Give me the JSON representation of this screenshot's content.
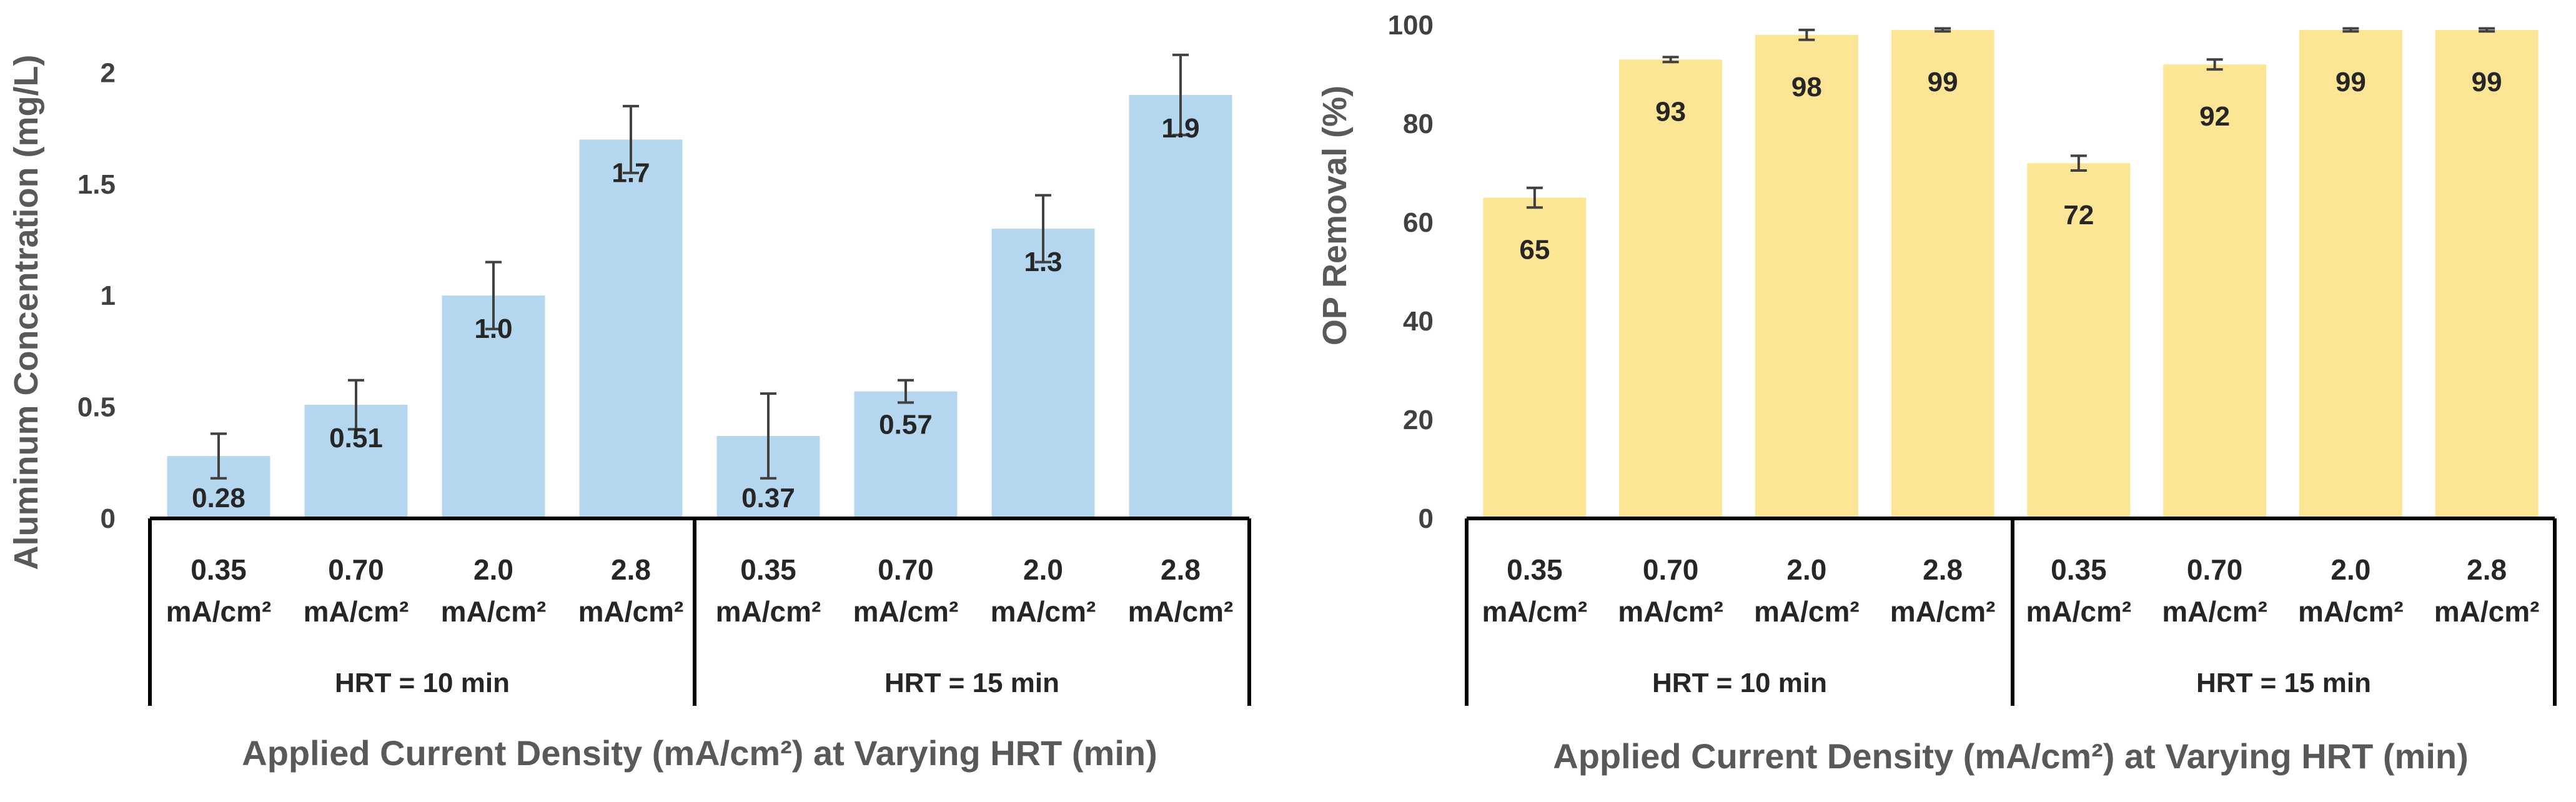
{
  "colors": {
    "left_bar": "#b4d6ee",
    "right_bar": "#fde596",
    "text": "#404040",
    "frame": "#000000",
    "error": "#404040"
  },
  "chart_data": [
    {
      "type": "bar",
      "title": "",
      "ylabel": "Aluminum Concentration (mg/L)",
      "xlabel": "Applied Current Density (mA/cm²) at Varying HRT (min)",
      "ylim": [
        0,
        2.2
      ],
      "yticks": [
        "0",
        "0.5",
        "1",
        "1.5",
        "2"
      ],
      "ytick_values": [
        0,
        0.5,
        1,
        1.5,
        2
      ],
      "grid": false,
      "groups": [
        "HRT = 10 min",
        "HRT = 15 min"
      ],
      "categories": [
        {
          "top": "0.35",
          "bottom": "mA/cm²"
        },
        {
          "top": "0.70",
          "bottom": "mA/cm²"
        },
        {
          "top": "2.0",
          "bottom": "mA/cm²"
        },
        {
          "top": "2.8",
          "bottom": "mA/cm²"
        },
        {
          "top": "0.35",
          "bottom": "mA/cm²"
        },
        {
          "top": "0.70",
          "bottom": "mA/cm²"
        },
        {
          "top": "2.0",
          "bottom": "mA/cm²"
        },
        {
          "top": "2.8",
          "bottom": "mA/cm²"
        }
      ],
      "values": [
        0.28,
        0.51,
        1.0,
        1.7,
        0.37,
        0.57,
        1.3,
        1.9
      ],
      "errors": [
        0.1,
        0.11,
        0.15,
        0.15,
        0.19,
        0.05,
        0.15,
        0.18
      ],
      "labels": [
        "0.28",
        "0.51",
        "1.0",
        "1.7",
        "0.37",
        "0.57",
        "1.3",
        "1.9"
      ]
    },
    {
      "type": "bar",
      "title": "",
      "ylabel": "OP Removal (%)",
      "xlabel": "Applied Current Density (mA/cm²) at Varying HRT (min)",
      "ylim": [
        0,
        100
      ],
      "yticks": [
        "0",
        "20",
        "40",
        "60",
        "80",
        "100"
      ],
      "ytick_values": [
        0,
        20,
        40,
        60,
        80,
        100
      ],
      "grid": false,
      "groups": [
        "HRT = 10 min",
        "HRT = 15 min"
      ],
      "categories": [
        {
          "top": "0.35",
          "bottom": "mA/cm²"
        },
        {
          "top": "0.70",
          "bottom": "mA/cm²"
        },
        {
          "top": "2.0",
          "bottom": "mA/cm²"
        },
        {
          "top": "2.8",
          "bottom": "mA/cm²"
        },
        {
          "top": "0.35",
          "bottom": "mA/cm²"
        },
        {
          "top": "0.70",
          "bottom": "mA/cm²"
        },
        {
          "top": "2.0",
          "bottom": "mA/cm²"
        },
        {
          "top": "2.8",
          "bottom": "mA/cm²"
        }
      ],
      "values": [
        65,
        93,
        98,
        99,
        72,
        92,
        99,
        99
      ],
      "errors": [
        2,
        0.5,
        1,
        0.3,
        1.5,
        1,
        0.3,
        0.3
      ],
      "labels": [
        "65",
        "93",
        "98",
        "99",
        "72",
        "92",
        "99",
        "99"
      ]
    }
  ]
}
